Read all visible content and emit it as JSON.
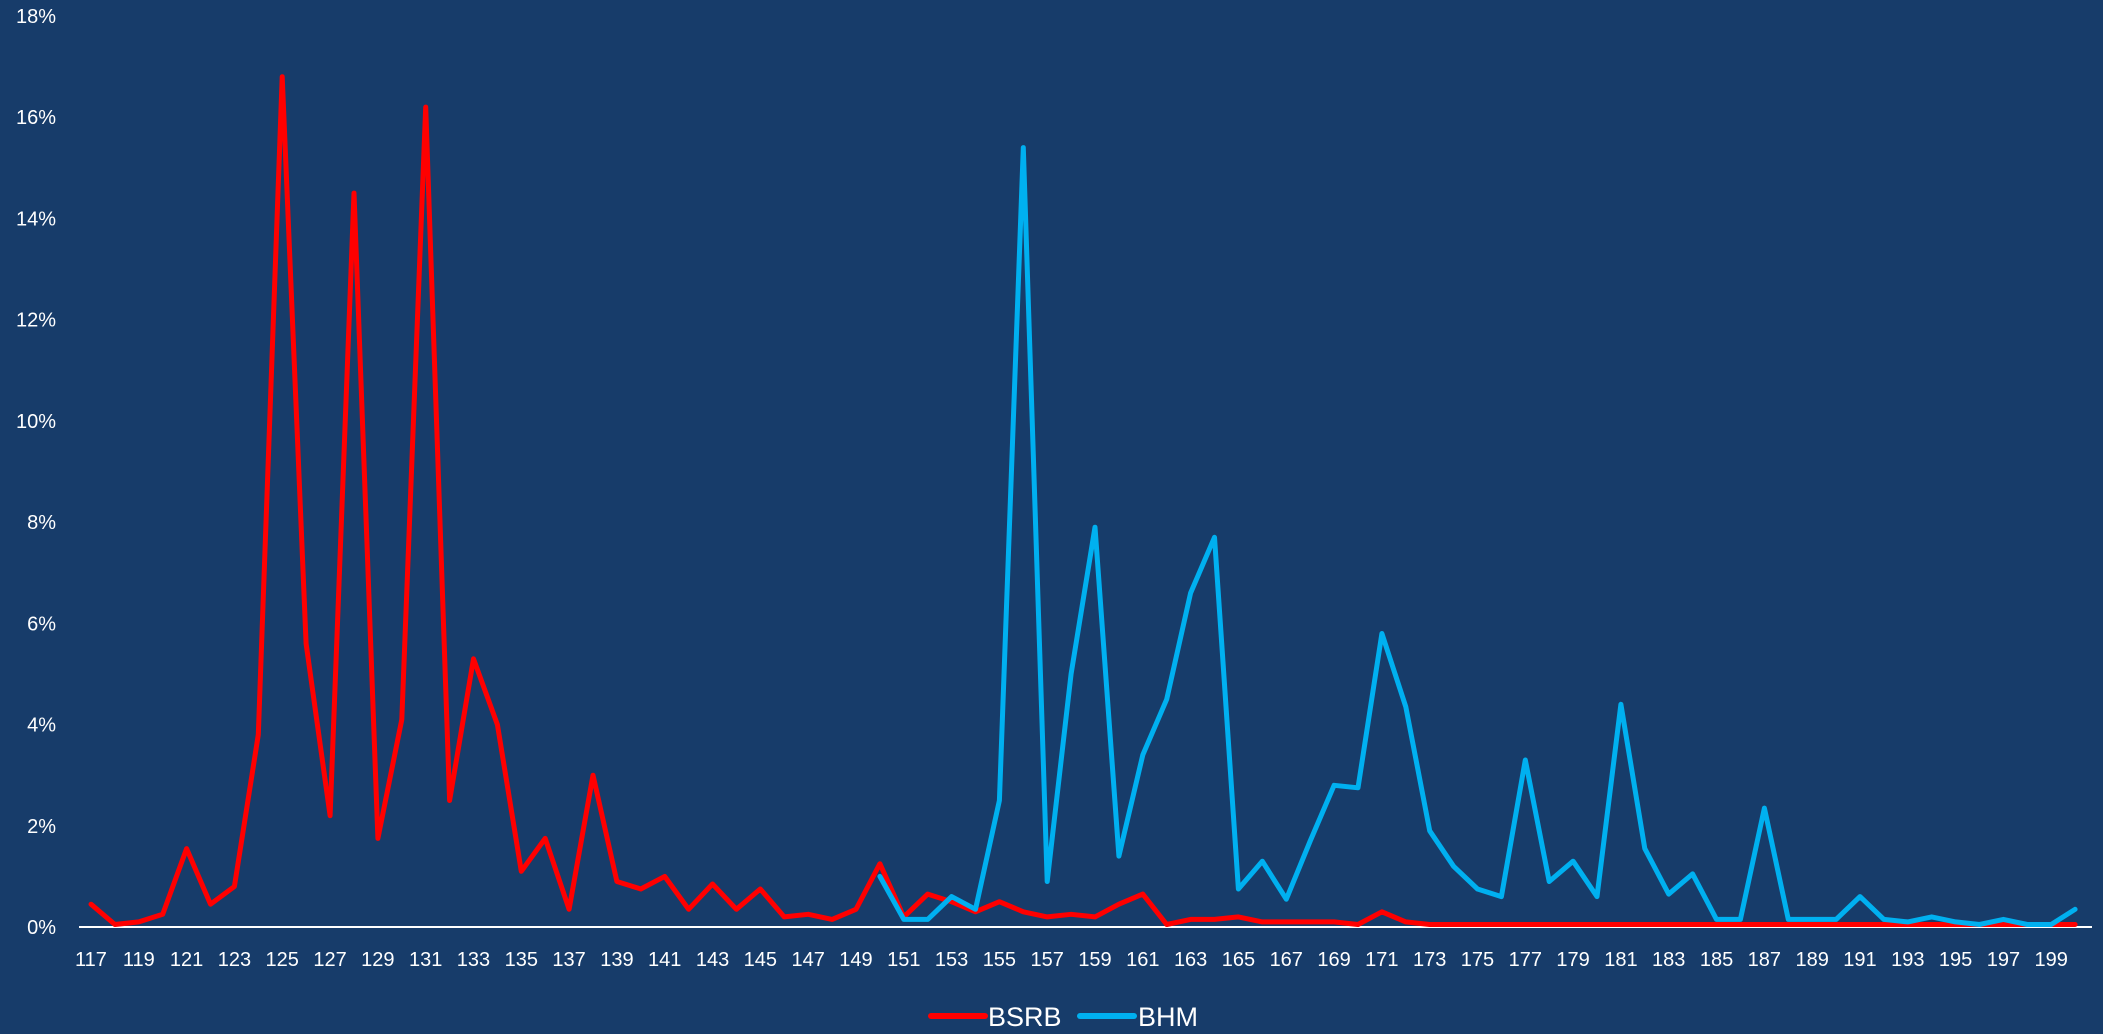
{
  "chart_data": {
    "type": "line",
    "title": "",
    "xlabel": "",
    "ylabel": "",
    "x_start": 117,
    "x_end": 200,
    "x_tick_labels": [
      "117",
      "119",
      "121",
      "123",
      "125",
      "127",
      "129",
      "131",
      "133",
      "135",
      "137",
      "139",
      "141",
      "143",
      "145",
      "147",
      "149",
      "151",
      "153",
      "155",
      "157",
      "159",
      "161",
      "163",
      "165",
      "167",
      "169",
      "171",
      "173",
      "175",
      "177",
      "179",
      "181",
      "183",
      "185",
      "187",
      "189",
      "191",
      "193",
      "195",
      "197",
      "199"
    ],
    "ylim": [
      0,
      18
    ],
    "y_ticks": [
      0,
      2,
      4,
      6,
      8,
      10,
      12,
      14,
      16,
      18
    ],
    "y_tick_labels": [
      "0%",
      "2%",
      "4%",
      "6%",
      "8%",
      "10%",
      "12%",
      "14%",
      "16%",
      "18%"
    ],
    "grid": false,
    "legend_position": "bottom",
    "series": [
      {
        "name": "BSRB",
        "color": "#FF0000",
        "x_start": 117,
        "values": [
          0.45,
          0.05,
          0.1,
          0.25,
          1.55,
          0.45,
          0.8,
          3.8,
          16.8,
          5.6,
          2.2,
          14.5,
          1.75,
          4.1,
          16.2,
          2.5,
          5.3,
          4.0,
          1.1,
          1.75,
          0.35,
          3.0,
          0.9,
          0.75,
          1.0,
          0.35,
          0.85,
          0.35,
          0.75,
          0.2,
          0.25,
          0.15,
          0.35,
          1.25,
          0.2,
          0.65,
          0.5,
          0.3,
          0.5,
          0.3,
          0.2,
          0.25,
          0.2,
          0.45,
          0.65,
          0.05,
          0.15,
          0.15,
          0.2,
          0.1,
          0.1,
          0.1,
          0.1,
          0.05,
          0.3,
          0.1,
          0.05,
          0.05,
          0.05,
          0.05,
          0.05,
          0.05,
          0.05,
          0.05,
          0.05,
          0.05,
          0.05,
          0.05,
          0.05,
          0.05,
          0.05,
          0.05,
          0.05,
          0.05,
          0.05,
          0.05,
          0.05,
          0.05,
          0.05,
          0.05,
          0.05,
          0.05,
          0.05,
          0.05
        ]
      },
      {
        "name": "BHM",
        "color": "#00B0F0",
        "x_start": 150,
        "values": [
          1.0,
          0.15,
          0.15,
          0.6,
          0.35,
          2.5,
          15.4,
          0.9,
          5.0,
          7.9,
          1.4,
          3.4,
          4.5,
          6.6,
          7.7,
          0.75,
          1.3,
          0.55,
          1.7,
          2.8,
          2.75,
          5.8,
          4.35,
          1.9,
          1.2,
          0.75,
          0.6,
          3.3,
          0.9,
          1.3,
          0.6,
          4.4,
          1.55,
          0.65,
          1.05,
          0.15,
          0.15,
          2.35,
          0.15,
          0.15,
          0.15,
          0.6,
          0.15,
          0.1,
          0.2,
          0.1,
          0.05,
          0.15,
          0.05,
          0.05,
          0.35
        ]
      }
    ]
  }
}
